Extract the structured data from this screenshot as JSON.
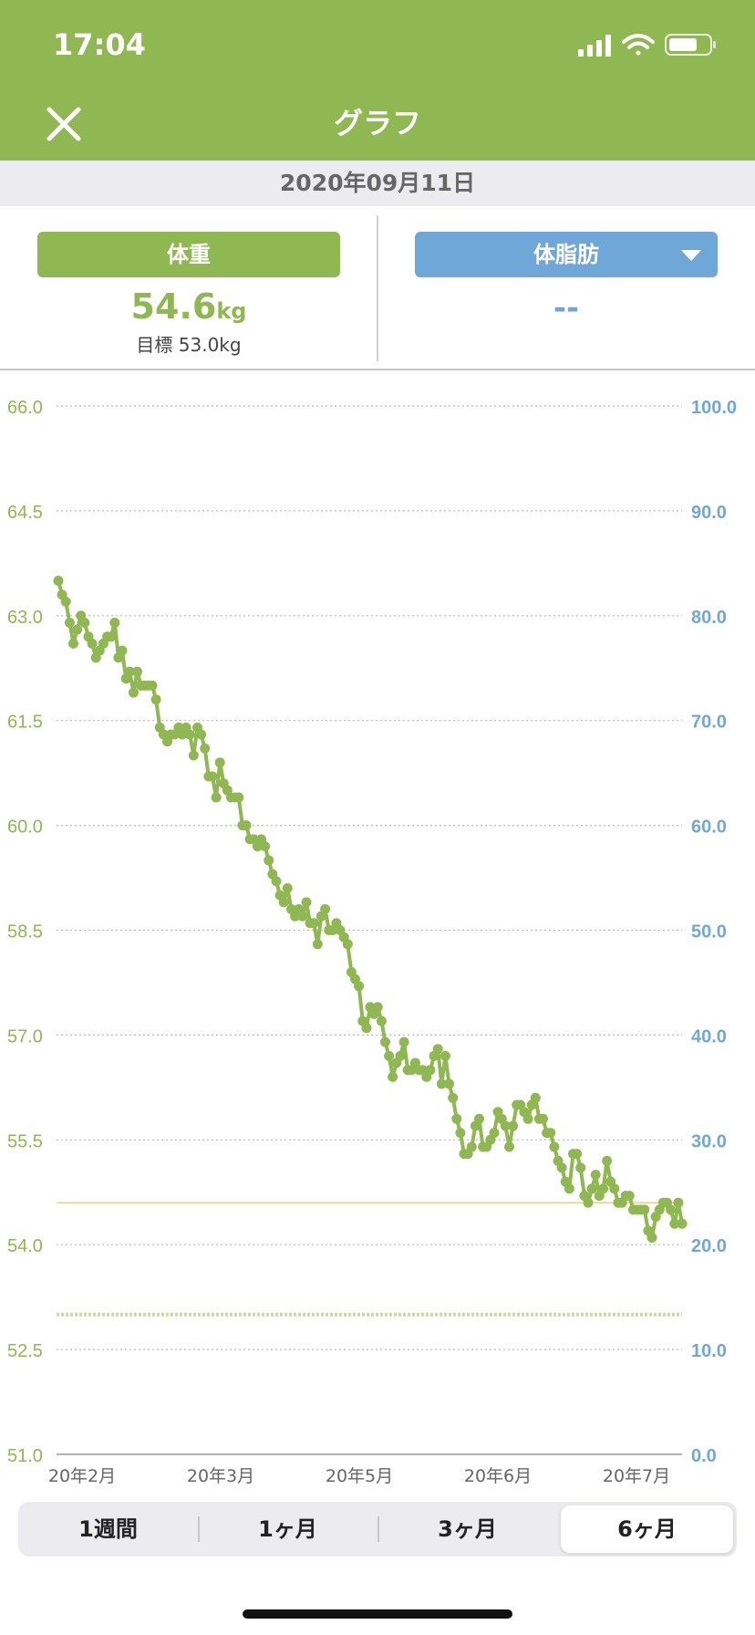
{
  "status_bar": {
    "time": "17:04"
  },
  "header": {
    "title": "グラフ"
  },
  "date": "2020年09月11日",
  "stats": {
    "weight_label": "体重",
    "weight_value": "54.6",
    "weight_unit": "kg",
    "goal_text": "目標 53.0kg",
    "fat_label": "体脂肪",
    "fat_value": "--"
  },
  "colors": {
    "green": "#8fb752",
    "blue": "#6fa8d8",
    "goal_line": "#c9dc9b",
    "current_line": "#e8d08a"
  },
  "chart_data": {
    "type": "line",
    "y_left": {
      "ticks": [
        "66.0",
        "64.5",
        "63.0",
        "61.5",
        "60.0",
        "58.5",
        "57.0",
        "55.5",
        "54.0",
        "52.5",
        "51.0"
      ],
      "range": [
        51.0,
        66.0
      ]
    },
    "y_right": {
      "ticks": [
        "100.0",
        "90.0",
        "80.0",
        "70.0",
        "60.0",
        "50.0",
        "40.0",
        "30.0",
        "20.0",
        "10.0",
        "0.0"
      ],
      "range": [
        0.0,
        100.0
      ]
    },
    "x_tick_labels": [
      "20年2月",
      "20年3月",
      "20年5月",
      "20年6月",
      "20年7月"
    ],
    "reference_lines": {
      "current": 54.6,
      "goal": 53.0
    },
    "grid": true,
    "series": [
      {
        "values": [
          63.5,
          63.3,
          63.2,
          62.9,
          62.6,
          62.8,
          63.0,
          62.9,
          62.7,
          62.6,
          62.4,
          62.5,
          62.6,
          62.7,
          62.7,
          62.9,
          62.4,
          62.5,
          62.1,
          62.2,
          61.9,
          62.2,
          62.0,
          62.0,
          62.0,
          62.0,
          61.8,
          61.4,
          61.3,
          61.2,
          61.3,
          61.3,
          61.4,
          61.3,
          61.4,
          61.3,
          61.0,
          61.4,
          61.3,
          61.1,
          60.7,
          60.7,
          60.4,
          60.9,
          60.6,
          60.5,
          60.4,
          60.4,
          60.4,
          60.0,
          60.0,
          59.8,
          59.8,
          59.7,
          59.8,
          59.7,
          59.5,
          59.3,
          59.2,
          59.0,
          58.9,
          59.1,
          58.8,
          58.7,
          58.8,
          58.7,
          58.9,
          58.6,
          58.6,
          58.3,
          58.7,
          58.8,
          58.5,
          58.5,
          58.6,
          58.5,
          58.4,
          58.3,
          57.9,
          57.8,
          57.7,
          57.2,
          57.1,
          57.4,
          57.3,
          57.4,
          57.2,
          56.9,
          56.7,
          56.4,
          56.6,
          56.7,
          56.9,
          56.5,
          56.5,
          56.6,
          56.5,
          56.5,
          56.4,
          56.5,
          56.7,
          56.8,
          56.3,
          56.7,
          56.3,
          56.1,
          55.8,
          55.6,
          55.3,
          55.3,
          55.4,
          55.7,
          55.8,
          55.4,
          55.4,
          55.5,
          55.6,
          55.9,
          55.8,
          55.7,
          55.4,
          55.7,
          56.0,
          56.0,
          55.9,
          55.8,
          56.0,
          56.1,
          55.8,
          55.8,
          55.6,
          55.6,
          55.4,
          55.2,
          55.1,
          54.9,
          54.8,
          55.3,
          55.3,
          55.1,
          54.7,
          54.6,
          54.8,
          55.0,
          54.7,
          54.8,
          55.2,
          54.9,
          54.8,
          54.6,
          54.6,
          54.7,
          54.7,
          54.5,
          54.5,
          54.5,
          54.5,
          54.2,
          54.1,
          54.4,
          54.5,
          54.6,
          54.6,
          54.5,
          54.3,
          54.6,
          54.3
        ]
      }
    ]
  },
  "tabs": [
    "1週間",
    "1ヶ月",
    "3ヶ月",
    "6ヶ月"
  ],
  "active_tab": "6ヶ月"
}
